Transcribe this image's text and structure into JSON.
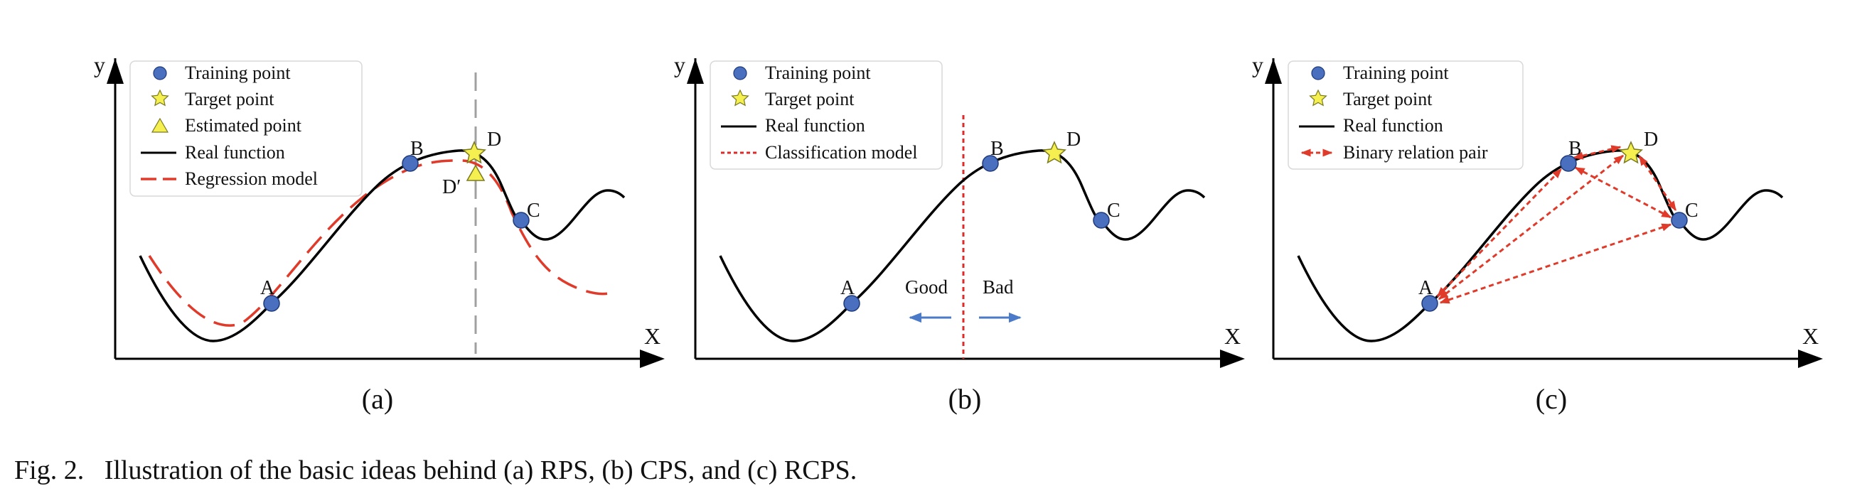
{
  "caption": "Fig. 2.   Illustration of the basic ideas behind (a) RPS, (b) CPS, and (c) RCPS.",
  "axis_labels": {
    "y": "y",
    "x": "X"
  },
  "colors": {
    "training_point": "#4a6fbf",
    "target_point": "#f5f050",
    "estimated_point": "#f5f050",
    "real_function": "#000000",
    "regression_model": "#e03a2a",
    "classification_model": "#e02a2a",
    "binary_relation": "#e03a2a",
    "direction_arrows": "#4a7ac8",
    "guide_line": "#a0a0a0"
  },
  "panels": [
    {
      "label": "(a)",
      "legend": [
        {
          "icon": "training-point-icon",
          "text": "Training point"
        },
        {
          "icon": "target-point-icon",
          "text": "Target point"
        },
        {
          "icon": "estimated-point-icon",
          "text": "Estimated point"
        },
        {
          "icon": "real-function-icon",
          "text": "Real function"
        },
        {
          "icon": "regression-model-icon",
          "text": "Regression model"
        }
      ],
      "point_labels": {
        "A": "A",
        "B": "B",
        "C": "C",
        "D": "D",
        "Dp": "D′"
      }
    },
    {
      "label": "(b)",
      "legend": [
        {
          "icon": "training-point-icon",
          "text": "Training point"
        },
        {
          "icon": "target-point-icon",
          "text": "Target point"
        },
        {
          "icon": "real-function-icon",
          "text": "Real function"
        },
        {
          "icon": "classification-model-icon",
          "text": "Classification model"
        }
      ],
      "point_labels": {
        "A": "A",
        "B": "B",
        "C": "C",
        "D": "D"
      },
      "regions": {
        "good": "Good",
        "bad": "Bad"
      }
    },
    {
      "label": "(c)",
      "legend": [
        {
          "icon": "training-point-icon",
          "text": "Training point"
        },
        {
          "icon": "target-point-icon",
          "text": "Target point"
        },
        {
          "icon": "real-function-icon",
          "text": "Real function"
        },
        {
          "icon": "binary-relation-icon",
          "text": "Binary relation pair"
        }
      ],
      "point_labels": {
        "A": "A",
        "B": "B",
        "C": "C",
        "D": "D"
      }
    }
  ]
}
